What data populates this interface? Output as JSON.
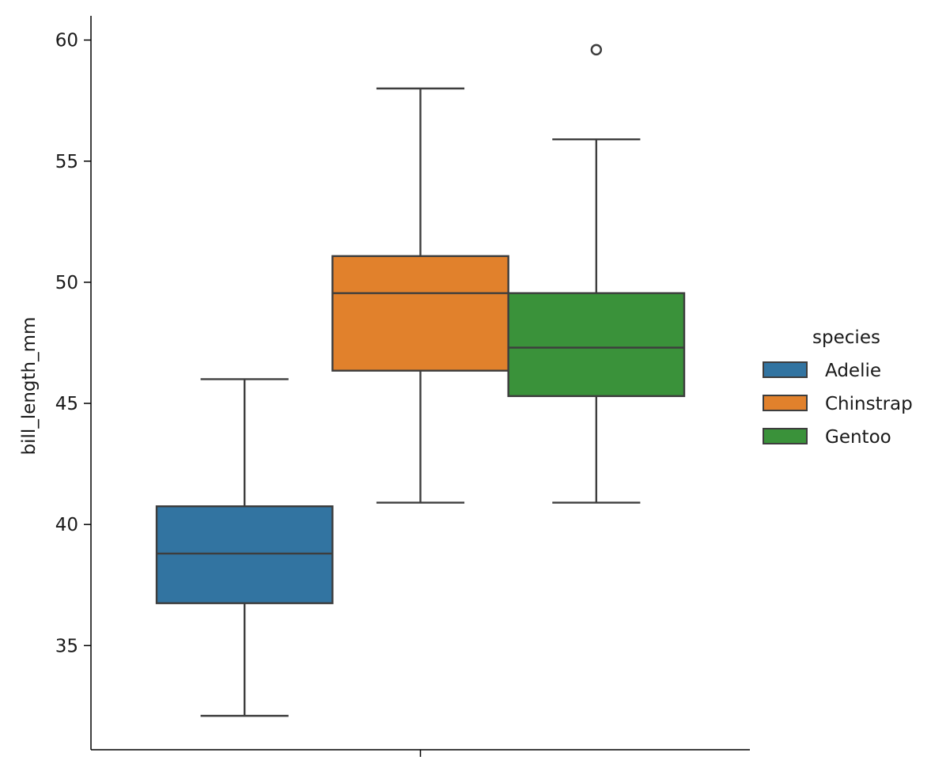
{
  "chart_data": {
    "type": "box",
    "ylabel": "bill_length_mm",
    "ylim": [
      30.7,
      61.0
    ],
    "yticks": [
      35,
      40,
      45,
      50,
      55,
      60
    ],
    "legend": {
      "title": "species",
      "placement": "right"
    },
    "series": [
      {
        "name": "Adelie",
        "color": "#3274a1",
        "whisker_low": 32.1,
        "q1": 36.75,
        "median": 38.8,
        "q3": 40.75,
        "whisker_high": 46.0,
        "outliers": []
      },
      {
        "name": "Chinstrap",
        "color": "#e1812c",
        "whisker_low": 40.9,
        "q1": 46.35,
        "median": 49.55,
        "q3": 51.08,
        "whisker_high": 58.0,
        "outliers": []
      },
      {
        "name": "Gentoo",
        "color": "#3a923a",
        "whisker_low": 40.9,
        "q1": 45.3,
        "median": 47.3,
        "q3": 49.55,
        "whisker_high": 55.9,
        "outliers": [
          59.6
        ]
      }
    ]
  }
}
